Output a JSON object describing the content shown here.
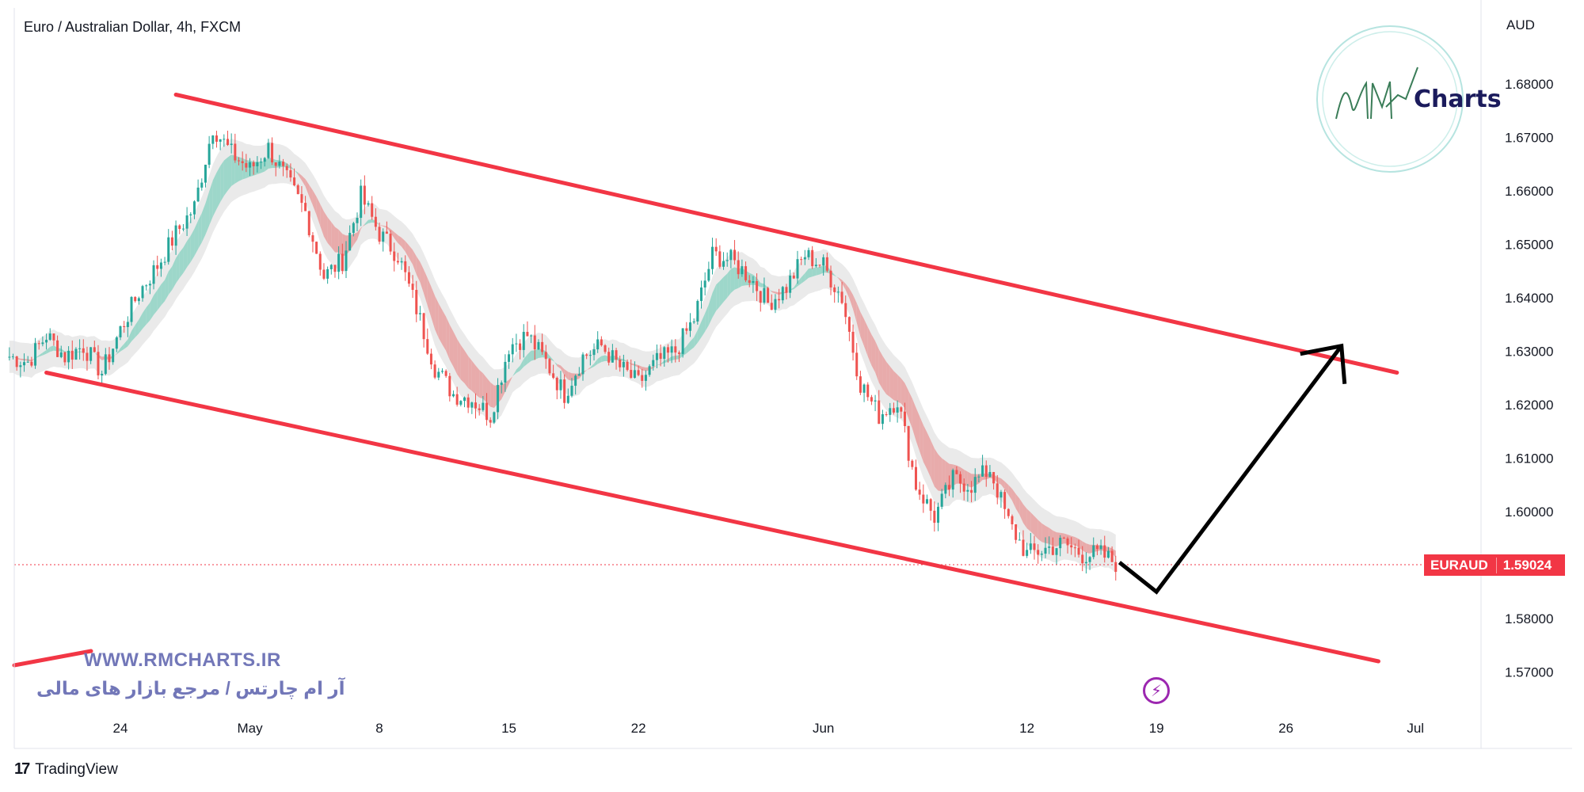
{
  "header": {
    "title": "Euro / Australian Dollar, 4h, FXCM",
    "currency_unit": "AUD"
  },
  "price_badge": {
    "symbol": "EURAUD",
    "value": "1.59024"
  },
  "watermark": {
    "url": "WWW.RMCHARTS.IR",
    "tagline": "آر ام چارتس / مرجع بازار های مالی",
    "logo_text": "Charts",
    "logo_initials": "RM"
  },
  "footer": {
    "brand": "TradingView",
    "brand_mark": "17"
  },
  "colors": {
    "up": "#26a69a",
    "down": "#ef5350",
    "channel": "#f23645",
    "arrow": "#000000",
    "band_up": "#8fd3c4",
    "band_down": "#e8a0a0",
    "band_shadow": "#d9d9d9"
  },
  "chart_data": {
    "type": "line",
    "title": "Euro / Australian Dollar, 4h, FXCM",
    "ylabel": "AUD",
    "xlabel": "",
    "ylim": [
      1.565,
      1.69
    ],
    "y_ticks": [
      "1.68000",
      "1.67000",
      "1.66000",
      "1.65000",
      "1.64000",
      "1.63000",
      "1.62000",
      "1.61000",
      "1.60000",
      "1.59000",
      "1.58000",
      "1.57000"
    ],
    "y_tick_values": [
      1.68,
      1.67,
      1.66,
      1.65,
      1.64,
      1.63,
      1.62,
      1.61,
      1.6,
      1.59,
      1.58,
      1.57
    ],
    "x_ticks": [
      "24",
      "May",
      "8",
      "15",
      "22",
      "Jun",
      "12",
      "19",
      "26",
      "Jul"
    ],
    "x_tick_dates": [
      "2023-04-24",
      "2023-05-01",
      "2023-05-08",
      "2023-05-15",
      "2023-05-22",
      "2023-06-01",
      "2023-06-12",
      "2023-06-19",
      "2023-06-26",
      "2023-07-03"
    ],
    "grid": false,
    "last_price": 1.59024,
    "series": [
      {
        "kind": "close",
        "dates": [
          "2023-04-18",
          "2023-04-19",
          "2023-04-20",
          "2023-04-21",
          "2023-04-22",
          "2023-04-23",
          "2023-04-24",
          "2023-04-25",
          "2023-04-26",
          "2023-04-27",
          "2023-04-28",
          "2023-04-29",
          "2023-04-30",
          "2023-05-01",
          "2023-05-02",
          "2023-05-03",
          "2023-05-04",
          "2023-05-05",
          "2023-05-06",
          "2023-05-07",
          "2023-05-08",
          "2023-05-09",
          "2023-05-10",
          "2023-05-11",
          "2023-05-12",
          "2023-05-13",
          "2023-05-14",
          "2023-05-15",
          "2023-05-16",
          "2023-05-17",
          "2023-05-18",
          "2023-05-19",
          "2023-05-20",
          "2023-05-21",
          "2023-05-22",
          "2023-05-23",
          "2023-05-24",
          "2023-05-25",
          "2023-05-26",
          "2023-05-27",
          "2023-05-28",
          "2023-05-29",
          "2023-05-30",
          "2023-05-31",
          "2023-06-01",
          "2023-06-02",
          "2023-06-03",
          "2023-06-04",
          "2023-06-05",
          "2023-06-06",
          "2023-06-07",
          "2023-06-08",
          "2023-06-09",
          "2023-06-10",
          "2023-06-11",
          "2023-06-12",
          "2023-06-13",
          "2023-06-14",
          "2023-06-15",
          "2023-06-16",
          "2023-06-17"
        ],
        "values": [
          1.629,
          1.628,
          1.633,
          1.629,
          1.631,
          1.626,
          1.634,
          1.641,
          1.646,
          1.652,
          1.657,
          1.672,
          1.667,
          1.664,
          1.668,
          1.662,
          1.656,
          1.644,
          1.647,
          1.659,
          1.652,
          1.648,
          1.638,
          1.627,
          1.622,
          1.621,
          1.618,
          1.631,
          1.633,
          1.628,
          1.622,
          1.629,
          1.631,
          1.627,
          1.624,
          1.628,
          1.63,
          1.636,
          1.648,
          1.647,
          1.644,
          1.639,
          1.642,
          1.648,
          1.646,
          1.64,
          1.624,
          1.618,
          1.621,
          1.605,
          1.599,
          1.606,
          1.605,
          1.608,
          1.598,
          1.592,
          1.593,
          1.594,
          1.592,
          1.592,
          1.59
        ]
      }
    ],
    "channel": {
      "upper": {
        "from": [
          "2023-04-27",
          1.678
        ],
        "to": [
          "2023-07-02",
          1.626
        ]
      },
      "lower": {
        "from": [
          "2023-04-20",
          1.626
        ],
        "to": [
          "2023-07-01",
          1.572
        ]
      }
    },
    "projection": [
      [
        "2023-06-17",
        1.5905
      ],
      [
        "2023-06-19",
        1.585
      ],
      [
        "2023-06-29",
        1.631
      ]
    ],
    "annotations": [
      "EURAUD 1.59024"
    ]
  }
}
